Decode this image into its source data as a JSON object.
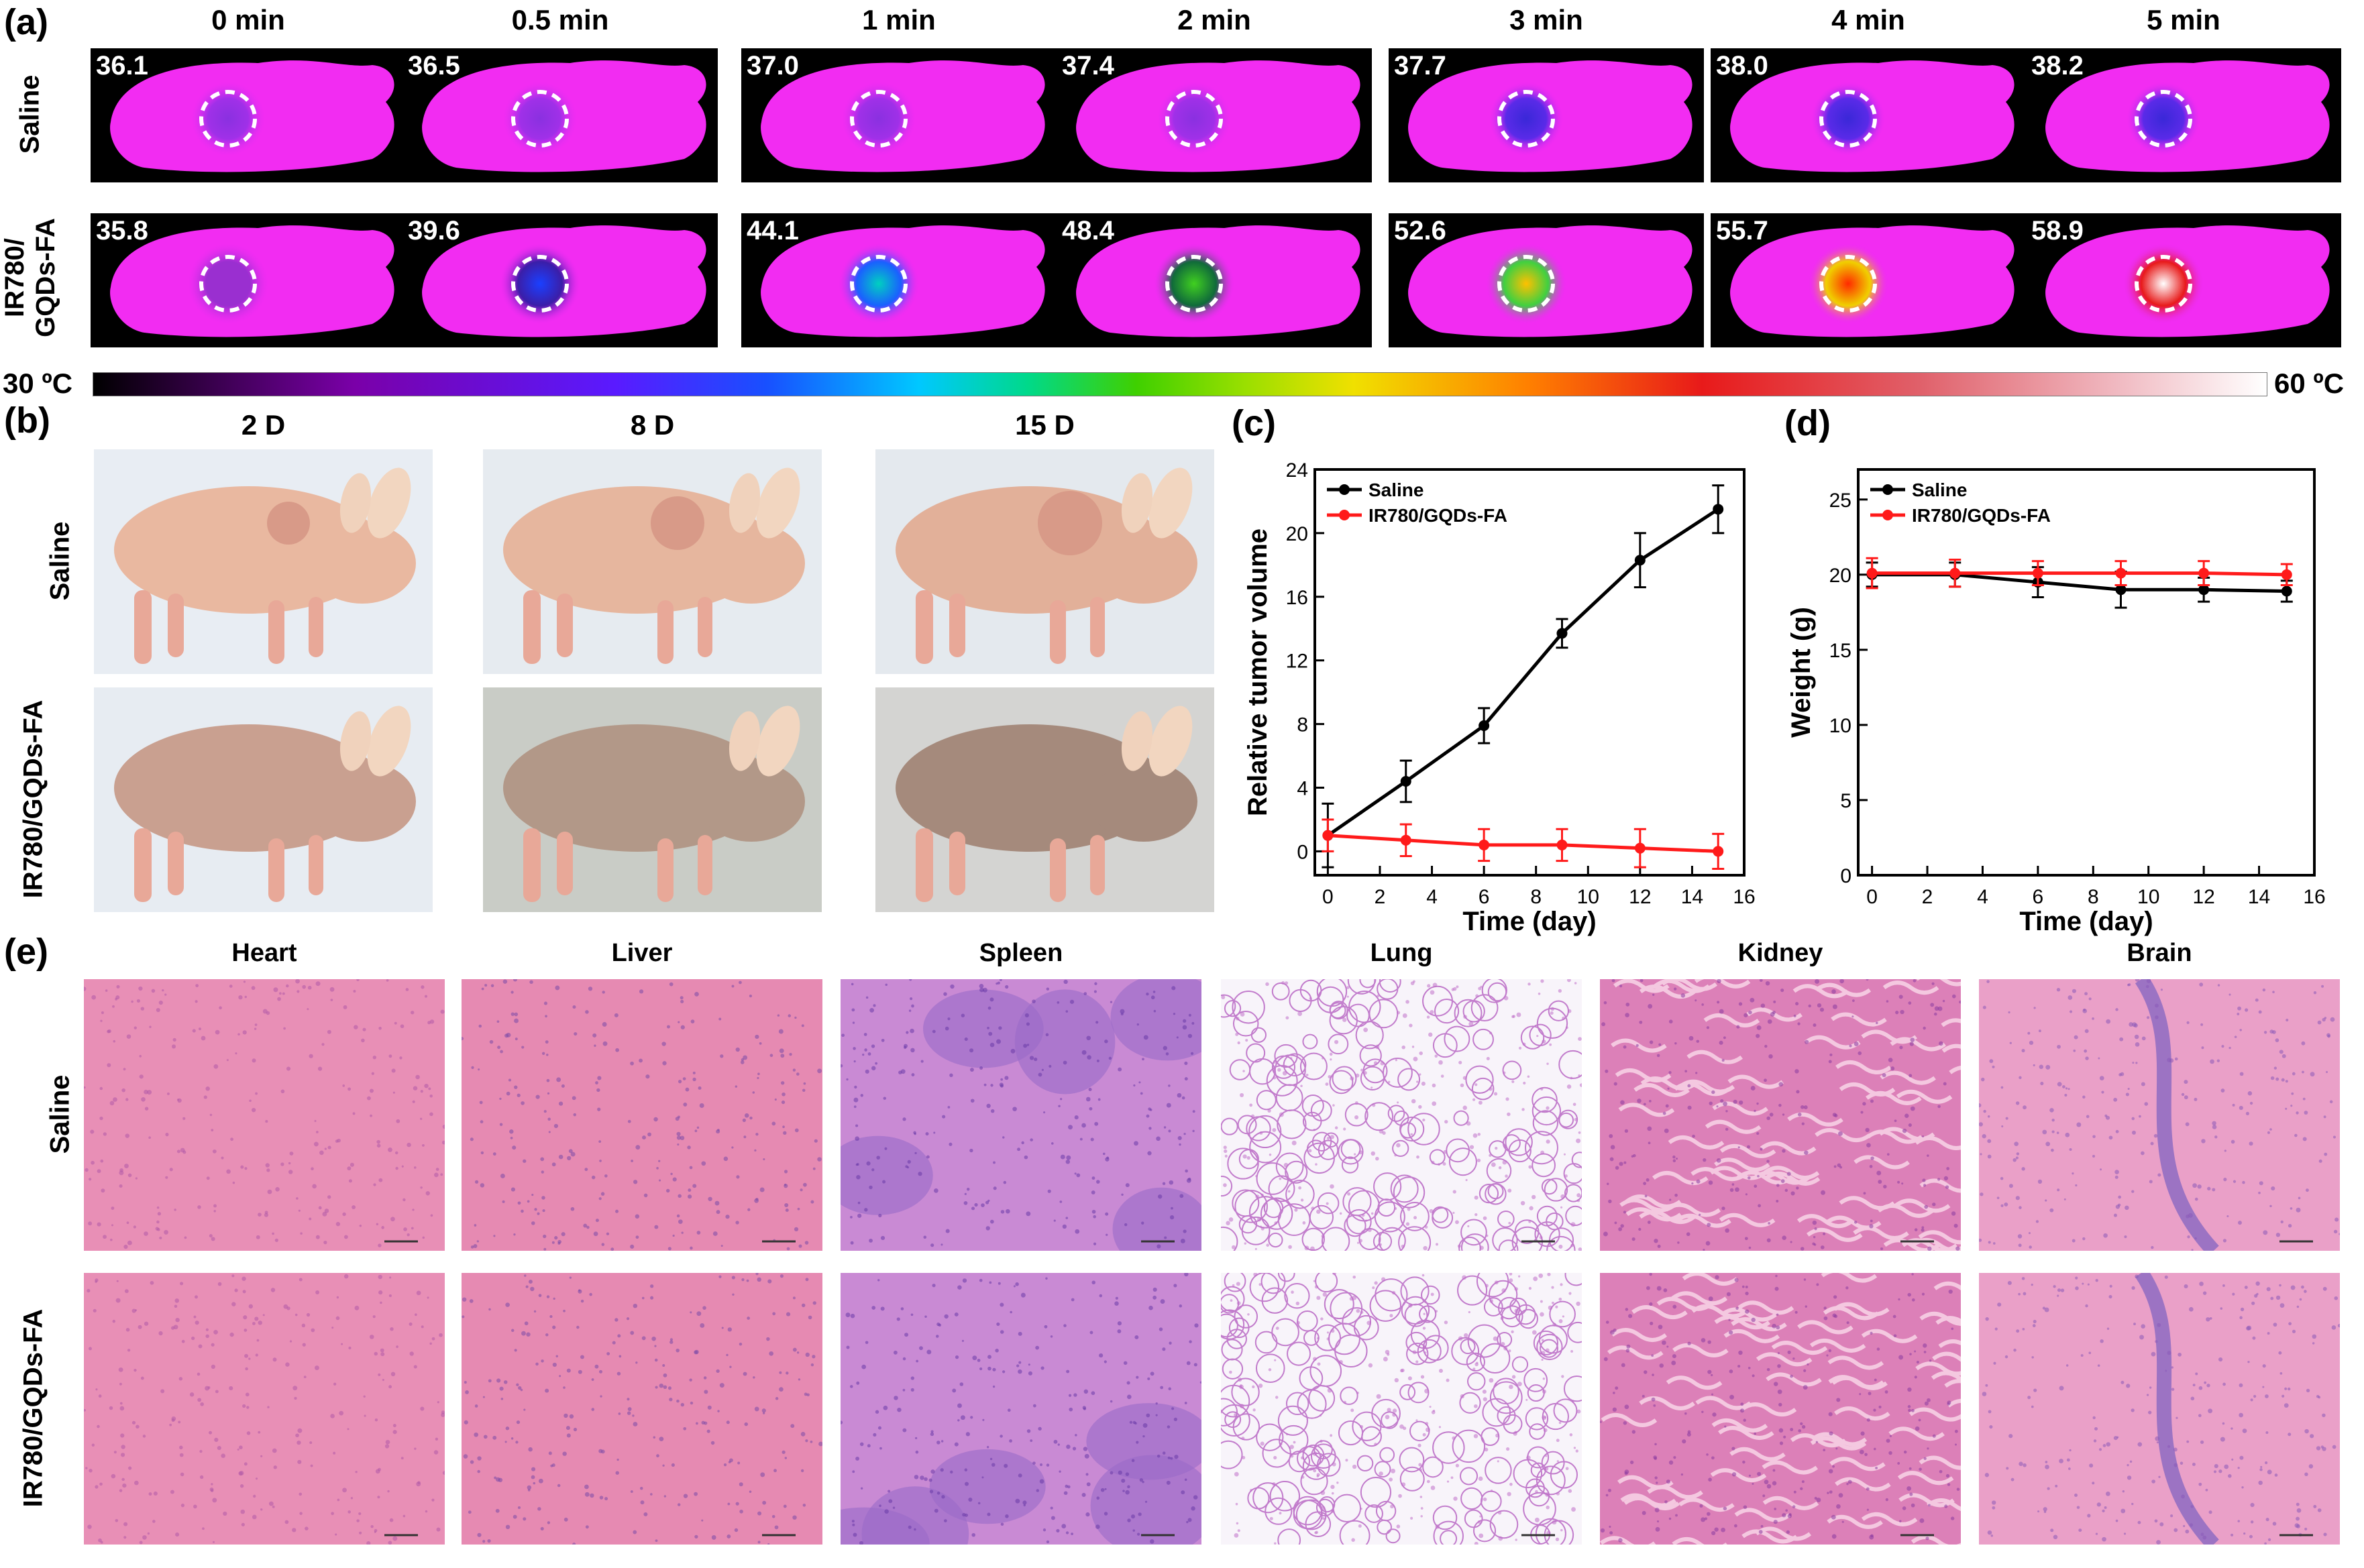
{
  "panel_a": {
    "label": "(a)",
    "times": [
      "0 min",
      "0.5 min",
      "1 min",
      "2 min",
      "3 min",
      "4 min",
      "5 min"
    ],
    "rows": [
      {
        "label": "Saline",
        "temps": [
          "36.1",
          "36.5",
          "37.0",
          "37.4",
          "37.7",
          "38.0",
          "38.2"
        ]
      },
      {
        "label": "IR780/\nGQDs-FA",
        "label_line1": "IR780/",
        "label_line2": "GQDs-FA",
        "temps": [
          "35.8",
          "39.6",
          "44.1",
          "48.4",
          "52.6",
          "55.7",
          "58.9"
        ]
      }
    ],
    "colorbar_min": "30 ºC",
    "colorbar_max": "60 ºC"
  },
  "panel_b": {
    "label": "(b)",
    "days": [
      "2 D",
      "8 D",
      "15 D"
    ],
    "rows": [
      "Saline",
      "IR780/GQDs-FA"
    ]
  },
  "panel_e": {
    "label": "(e)",
    "organs": [
      "Heart",
      "Liver",
      "Spleen",
      "Lung",
      "Kidney",
      "Brain"
    ],
    "rows": [
      "Saline",
      "IR780/GQDs-FA"
    ]
  },
  "chart_data": [
    {
      "panel": "(c)",
      "type": "line",
      "xlabel": "Time (day)",
      "ylabel": "Relative tumor volume",
      "xlim": [
        -0.5,
        16
      ],
      "ylim": [
        -1.5,
        24
      ],
      "xticks": [
        0,
        2,
        4,
        6,
        8,
        10,
        12,
        14,
        16
      ],
      "yticks": [
        0,
        4,
        8,
        12,
        16,
        20,
        24
      ],
      "legend_position": "top-left",
      "series": [
        {
          "name": "Saline",
          "color": "#000000",
          "x": [
            0,
            3,
            6,
            9,
            12,
            15
          ],
          "y": [
            1.0,
            4.4,
            7.9,
            13.7,
            18.3,
            21.5
          ],
          "err": [
            2.0,
            1.3,
            1.1,
            0.9,
            1.7,
            1.5
          ]
        },
        {
          "name": "IR780/GQDs-FA",
          "color": "#ff1a1a",
          "x": [
            0,
            3,
            6,
            9,
            12,
            15
          ],
          "y": [
            1.0,
            0.7,
            0.4,
            0.4,
            0.2,
            0.0
          ],
          "err": [
            1.0,
            1.0,
            1.0,
            1.0,
            1.2,
            1.1
          ]
        }
      ]
    },
    {
      "panel": "(d)",
      "type": "line",
      "xlabel": "Time (day)",
      "ylabel": "Weight (g)",
      "xlim": [
        -0.5,
        16
      ],
      "ylim": [
        0,
        27
      ],
      "xticks": [
        0,
        2,
        4,
        6,
        8,
        10,
        12,
        14,
        16
      ],
      "yticks": [
        0,
        5,
        10,
        15,
        20,
        25
      ],
      "legend_position": "top-left",
      "series": [
        {
          "name": "Saline",
          "color": "#000000",
          "x": [
            0,
            3,
            6,
            9,
            12,
            15
          ],
          "y": [
            20.0,
            20.0,
            19.5,
            19.0,
            19.0,
            18.9
          ],
          "err": [
            0.8,
            0.8,
            1.0,
            1.2,
            0.8,
            0.7
          ]
        },
        {
          "name": "IR780/GQDs-FA",
          "color": "#ff1a1a",
          "x": [
            0,
            3,
            6,
            9,
            12,
            15
          ],
          "y": [
            20.1,
            20.1,
            20.1,
            20.1,
            20.1,
            20.0
          ],
          "err": [
            1.0,
            0.9,
            0.8,
            0.8,
            0.8,
            0.7
          ]
        }
      ]
    }
  ]
}
